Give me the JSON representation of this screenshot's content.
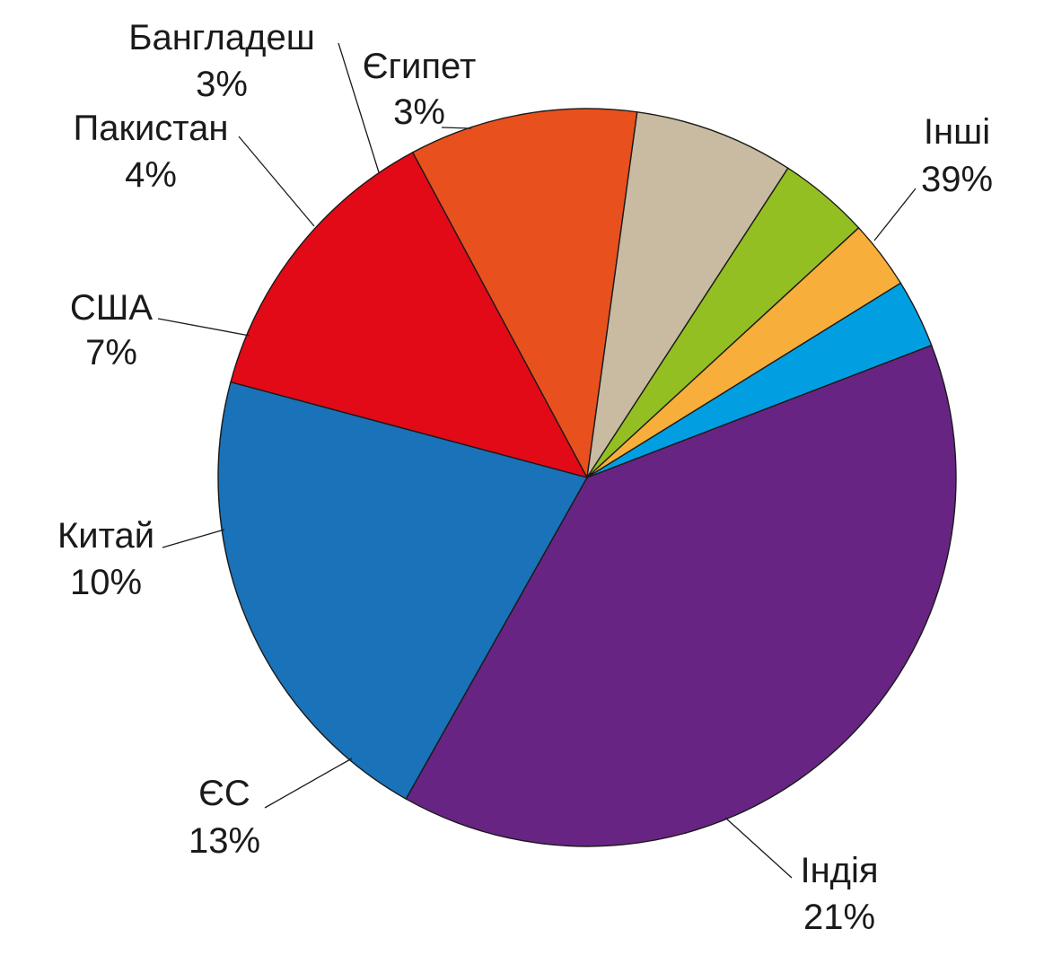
{
  "chart_data": {
    "type": "pie",
    "title": "",
    "start_angle_deg": -21,
    "direction": "clockwise",
    "slices": [
      {
        "label": "Інші",
        "value": 39,
        "value_label": "39%",
        "color": "#682483"
      },
      {
        "label": "Індія",
        "value": 21,
        "value_label": "21%",
        "color": "#1a72b8"
      },
      {
        "label": "ЄС",
        "value": 13,
        "value_label": "13%",
        "color": "#e20a17"
      },
      {
        "label": "Китай",
        "value": 10,
        "value_label": "10%",
        "color": "#e8501d"
      },
      {
        "label": "США",
        "value": 7,
        "value_label": "7%",
        "color": "#c9bba1"
      },
      {
        "label": "Пакистан",
        "value": 4,
        "value_label": "4%",
        "color": "#94bf23"
      },
      {
        "label": "Бангладеш",
        "value": 3,
        "value_label": "3%",
        "color": "#f7ae3a"
      },
      {
        "label": "Єгипет",
        "value": 3,
        "value_label": "3%",
        "color": "#019fe1"
      }
    ]
  }
}
